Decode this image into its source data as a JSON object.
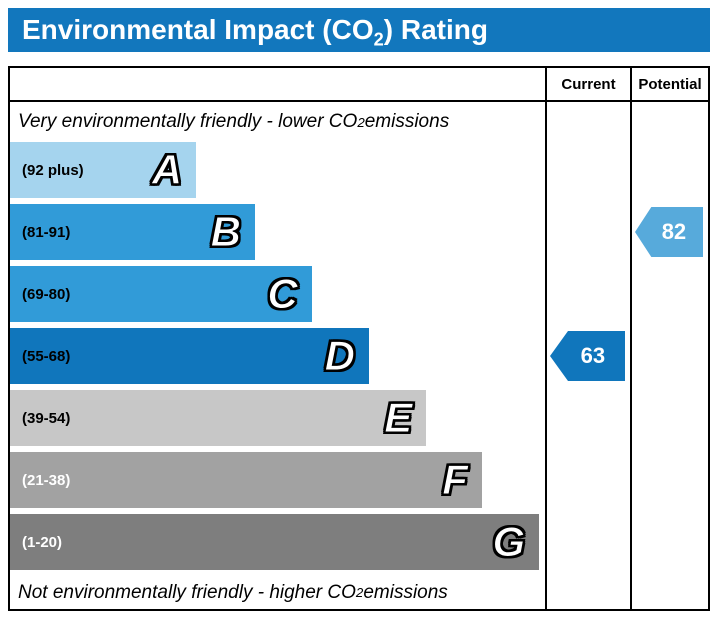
{
  "title": {
    "prefix": "Environmental Impact (CO",
    "sub": "2",
    "suffix": ") Rating"
  },
  "table_header": {
    "current": "Current",
    "potential": "Potential"
  },
  "notes": {
    "top": {
      "prefix": "Very environmentally friendly - lower CO",
      "sub": "2",
      "suffix": " emissions"
    },
    "bottom": {
      "prefix": "Not environmentally friendly - higher CO",
      "sub": "2",
      "suffix": " emissions"
    }
  },
  "bands": [
    {
      "letter": "A",
      "range": "(92 plus)",
      "color": "#a5d4ee",
      "text_color": "#000000",
      "bar_width_pct": 34.8
    },
    {
      "letter": "B",
      "range": "(81-91)",
      "color": "#319bd8",
      "text_color": "#000000",
      "bar_width_pct": 45.8
    },
    {
      "letter": "C",
      "range": "(69-80)",
      "color": "#319bd8",
      "text_color": "#000000",
      "bar_width_pct": 56.4
    },
    {
      "letter": "D",
      "range": "(55-68)",
      "color": "#1076bc",
      "text_color": "#000000",
      "bar_width_pct": 67.1
    },
    {
      "letter": "E",
      "range": "(39-54)",
      "color": "#c7c7c7",
      "text_color": "#000000",
      "bar_width_pct": 77.8
    },
    {
      "letter": "F",
      "range": "(21-38)",
      "color": "#a2a2a2",
      "text_color": "#ffffff",
      "bar_width_pct": 88.2
    },
    {
      "letter": "G",
      "range": "(1-20)",
      "color": "#7e7e7e",
      "text_color": "#ffffff",
      "bar_width_pct": 98.9
    }
  ],
  "ratings": {
    "current": {
      "label": "Current",
      "value": "63",
      "band": "D",
      "color": "#1076bc"
    },
    "potential": {
      "label": "Potential",
      "value": "82",
      "band": "B",
      "color": "#57aadb"
    }
  },
  "colors": {
    "title_bar": "#1277bd",
    "border": "#000000"
  },
  "chart_data": {
    "type": "bar",
    "title": "Environmental Impact (CO2) Rating",
    "categories": [
      "A",
      "B",
      "C",
      "D",
      "E",
      "F",
      "G"
    ],
    "band_ranges": [
      "92 plus",
      "81-91",
      "69-80",
      "55-68",
      "39-54",
      "21-38",
      "1-20"
    ],
    "band_colors": [
      "#a5d4ee",
      "#319bd8",
      "#319bd8",
      "#1076bc",
      "#c7c7c7",
      "#a2a2a2",
      "#7e7e7e"
    ],
    "series": [
      {
        "name": "Current",
        "values": [
          63
        ],
        "band": "D"
      },
      {
        "name": "Potential",
        "values": [
          82
        ],
        "band": "B"
      }
    ],
    "annotations": [
      "Very environmentally friendly - lower CO2 emissions",
      "Not environmentally friendly - higher CO2 emissions"
    ],
    "legend_position": "none",
    "grid": false
  }
}
